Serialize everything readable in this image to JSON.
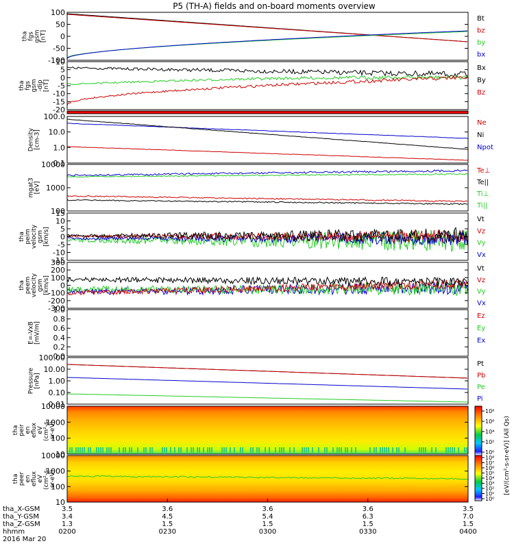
{
  "title": "P5 (TH-A) fields and on-board moments overview",
  "colors": {
    "black": "#000000",
    "red": "#cc0000",
    "green": "#22cc22",
    "blue": "#0000cc",
    "frame": "#000000"
  },
  "panels": [
    {
      "ylabel": [
        "tha",
        "fgs",
        "gsm",
        "[nT]"
      ],
      "ticks": [
        "100",
        "50",
        "0",
        "-50",
        "-100"
      ],
      "legend": [
        {
          "text": "Bt",
          "color": "black"
        },
        {
          "text": "bz",
          "color": "red"
        },
        {
          "text": "by",
          "color": "green"
        },
        {
          "text": "bx",
          "color": "blue"
        }
      ]
    },
    {
      "ylabel": [
        "tha",
        "fgs",
        "gsm",
        "-dip",
        "[nT]"
      ],
      "ticks": [
        "10",
        "5",
        "0",
        "-5",
        "-10",
        "-15",
        "-20"
      ],
      "legend": [
        {
          "text": "Bx",
          "color": "black"
        },
        {
          "text": "By",
          "color": "black"
        },
        {
          "text": "Bz",
          "color": "red"
        }
      ]
    },
    {
      "ylabel": [],
      "ticks": [],
      "legend": []
    },
    {
      "ylabel": [
        "Density",
        "[cm-3]"
      ],
      "ticks": [
        "100.0",
        "10.0",
        "1.0",
        "0.1"
      ],
      "legend": [
        {
          "text": "Ne",
          "color": "red"
        },
        {
          "text": "Ni",
          "color": "black"
        },
        {
          "text": "Npot",
          "color": "blue"
        }
      ]
    },
    {
      "ylabel": [
        "mgat3",
        "[eV]"
      ],
      "ticks": [
        "10000",
        "1000",
        "100"
      ],
      "legend": [
        {
          "text": "Te⊥",
          "color": "red"
        },
        {
          "text": "Te||",
          "color": "black"
        },
        {
          "text": "Ti⊥",
          "color": "green"
        },
        {
          "text": "Ti||",
          "color": "green"
        }
      ]
    },
    {
      "ylabel": [
        "tha",
        "peim",
        "velocity",
        "gsm",
        "[km/s]"
      ],
      "ticks": [
        "15",
        "10",
        "5",
        "0",
        "-5",
        "-10",
        "-15"
      ],
      "legend": [
        {
          "text": "Vt",
          "color": "black"
        },
        {
          "text": "Vz",
          "color": "red"
        },
        {
          "text": "Vy",
          "color": "green"
        },
        {
          "text": "Vx",
          "color": "blue"
        }
      ]
    },
    {
      "ylabel": [
        "tha",
        "peem",
        "velocity",
        "gsm",
        "[km/s]"
      ],
      "ticks": [
        "300",
        "200",
        "100",
        "0",
        "-100",
        "-200",
        "-300"
      ],
      "legend": [
        {
          "text": "Vt",
          "color": "black"
        },
        {
          "text": "Vz",
          "color": "red"
        },
        {
          "text": "Vy",
          "color": "green"
        },
        {
          "text": "Vx",
          "color": "blue"
        }
      ]
    },
    {
      "ylabel": [
        "E=-VxB",
        "[mV/m]"
      ],
      "ticks": [
        "1.0",
        "0.8",
        "0.6",
        "0.4",
        "0.2",
        "0.0"
      ],
      "legend": [
        {
          "text": "Ez",
          "color": "red"
        },
        {
          "text": "Ey",
          "color": "green"
        },
        {
          "text": "Ex",
          "color": "blue"
        }
      ]
    },
    {
      "ylabel": [
        "Pressure",
        "[nPa]"
      ],
      "ticks": [
        "100.00",
        "10.00",
        "1.00",
        "0.10",
        "0.01"
      ],
      "legend": [
        {
          "text": "Pt",
          "color": "black"
        },
        {
          "text": "Pb",
          "color": "red"
        },
        {
          "text": "Pe",
          "color": "green"
        },
        {
          "text": "Pi",
          "color": "blue"
        }
      ]
    },
    {
      "ylabel": [
        "tha",
        "peir",
        "en",
        "eflux",
        "eV",
        "(cm²-s-",
        "sr-eV)"
      ],
      "ticks": [
        "10000",
        "1000",
        "100",
        "10"
      ],
      "legend": []
    },
    {
      "ylabel": [
        "tha",
        "peer",
        "en",
        "eflux",
        "eV",
        "(cm²-s-",
        "sr-eV)"
      ],
      "ticks": [
        "10000",
        "1000",
        "100",
        "10"
      ],
      "legend": []
    }
  ],
  "colorbar": {
    "label": "[eV/(cm²-s-sr-eV)] (All Qs)",
    "ticks1": [
      "10⁸",
      "10⁶",
      "10⁴",
      "10²",
      "10⁰"
    ],
    "ticks2": [
      "10⁸",
      "10⁷",
      "10⁶",
      "10⁵",
      "10⁴",
      "10³",
      "10²",
      "10¹",
      "10⁰"
    ]
  },
  "xaxis": {
    "row_labels": [
      "tha_X-GSM",
      "tha_Y-GSM",
      "tha_Z-GSM",
      "hhmm",
      "2016 Mar 20"
    ],
    "ticks": [
      {
        "x": "3.5",
        "y": "3.4",
        "z": "1.3",
        "t": "0200"
      },
      {
        "x": "3.6",
        "y": "4.5",
        "z": "1.5",
        "t": "0230"
      },
      {
        "x": "3.6",
        "y": "5.4",
        "z": "1.5",
        "t": "0300"
      },
      {
        "x": "3.6",
        "y": "6.3",
        "z": "1.5",
        "t": "0330"
      },
      {
        "x": "3.5",
        "y": "7.0",
        "z": "1.5",
        "t": "0400"
      }
    ]
  }
}
